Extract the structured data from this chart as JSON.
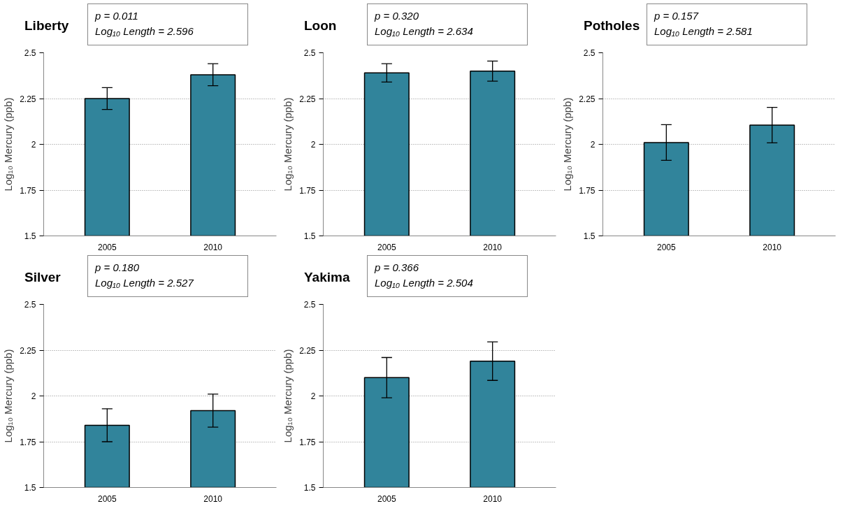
{
  "chart_data": [
    {
      "type": "bar",
      "title": "Liberty",
      "ylabel": "Log₁₀ Mercury (ppb)",
      "categories": [
        "2005",
        "2010"
      ],
      "values": [
        2.25,
        2.38
      ],
      "errors": [
        0.06,
        0.06
      ],
      "color": "#31849b",
      "ylim": [
        1.5,
        2.5
      ],
      "yticks": [
        1.5,
        1.75,
        2,
        2.25,
        2.5
      ],
      "grid": "y",
      "annotations": [
        "p = 0.011",
        "Log₁₀ Length = 2.596"
      ]
    },
    {
      "type": "bar",
      "title": "Loon",
      "ylabel": "Log₁₀ Mercury (ppb)",
      "categories": [
        "2005",
        "2010"
      ],
      "values": [
        2.39,
        2.4
      ],
      "errors": [
        0.05,
        0.055
      ],
      "color": "#31849b",
      "ylim": [
        1.5,
        2.5
      ],
      "yticks": [
        1.5,
        1.75,
        2,
        2.25,
        2.5
      ],
      "grid": "y",
      "annotations": [
        "p = 0.320",
        "Log₁₀ Length = 2.634"
      ]
    },
    {
      "type": "bar",
      "title": "Potholes",
      "ylabel": "Log₁₀ Mercury (ppb)",
      "categories": [
        "2005",
        "2010"
      ],
      "values": [
        2.01,
        2.105
      ],
      "errors": [
        0.097,
        0.097
      ],
      "color": "#31849b",
      "ylim": [
        1.5,
        2.5
      ],
      "yticks": [
        1.5,
        1.75,
        2,
        2.25,
        2.5
      ],
      "grid": "y",
      "annotations": [
        "p = 0.157",
        "Log₁₀ Length = 2.581"
      ]
    },
    {
      "type": "bar",
      "title": "Silver",
      "ylabel": "Log₁₀ Mercury (ppb)",
      "categories": [
        "2005",
        "2010"
      ],
      "values": [
        1.84,
        1.92
      ],
      "errors": [
        0.09,
        0.09
      ],
      "color": "#31849b",
      "ylim": [
        1.5,
        2.5
      ],
      "yticks": [
        1.5,
        1.75,
        2,
        2.25,
        2.5
      ],
      "grid": "y",
      "annotations": [
        "p = 0.180",
        "Log₁₀ Length = 2.527"
      ]
    },
    {
      "type": "bar",
      "title": "Yakima",
      "ylabel": "Log₁₀ Mercury (ppb)",
      "categories": [
        "2005",
        "2010"
      ],
      "values": [
        2.1,
        2.19
      ],
      "errors": [
        0.11,
        0.105
      ],
      "color": "#31849b",
      "ylim": [
        1.5,
        2.5
      ],
      "yticks": [
        1.5,
        1.75,
        2,
        2.25,
        2.5
      ],
      "grid": "y",
      "annotations": [
        "p = 0.366",
        "Log₁₀ Length = 2.504"
      ]
    }
  ]
}
